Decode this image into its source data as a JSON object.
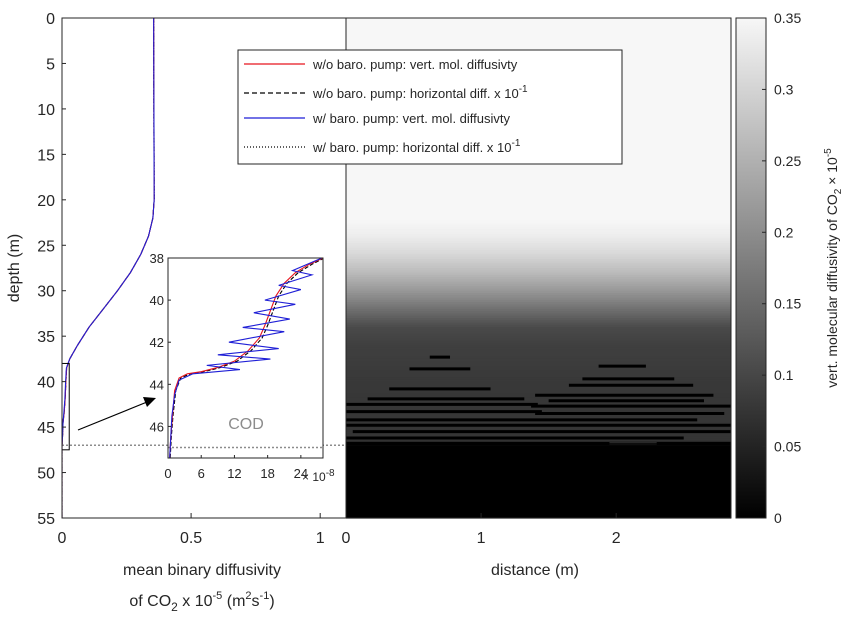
{
  "chart_data": [
    {
      "type": "line",
      "panel": "profile",
      "xlabel_line1": "mean binary diffusivity",
      "xlabel_line2": "of CO",
      "xlabel_sub": "2",
      "xlabel_mid": " x 10",
      "xlabel_exp": "-5",
      "xlabel_unit_a": " (m",
      "xlabel_unit_b": "2",
      "xlabel_unit_c": "s",
      "xlabel_unit_d": "-1",
      "xlabel_unit_e": ")",
      "ylabel": "depth (m)",
      "xlim": [
        0,
        1.1
      ],
      "ylim": [
        55,
        0
      ],
      "x_ticks": [
        0,
        0.5,
        1
      ],
      "x_tick_labels": [
        "0",
        "0.5",
        "1"
      ],
      "y_ticks": [
        0,
        5,
        10,
        15,
        20,
        25,
        30,
        35,
        40,
        45,
        50,
        55
      ],
      "y_tick_labels": [
        "0",
        "5",
        "10",
        "15",
        "20",
        "25",
        "30",
        "35",
        "40",
        "45",
        "50",
        "55"
      ],
      "grid": false,
      "series": [
        {
          "name": "w/o baro. pump: vert. mol. diffusivty",
          "color": "#e8141e",
          "dash": "solid",
          "points": [
            [
              0.355,
              0
            ],
            [
              0.356,
              10
            ],
            [
              0.357,
              20
            ],
            [
              0.352,
              22
            ],
            [
              0.335,
              24
            ],
            [
              0.305,
              26
            ],
            [
              0.265,
              28
            ],
            [
              0.215,
              30
            ],
            [
              0.16,
              32
            ],
            [
              0.105,
              34
            ],
            [
              0.06,
              36
            ],
            [
              0.03,
              37.5
            ],
            [
              0.018,
              38.5
            ],
            [
              0.015,
              40
            ],
            [
              0.012,
              42
            ],
            [
              0.008,
              43.5
            ],
            [
              0.004,
              44.5
            ],
            [
              0.002,
              46
            ],
            [
              0.0,
              47
            ],
            [
              0.0,
              55
            ]
          ]
        },
        {
          "name": "w/o baro. pump: horizontal diff. x 10",
          "name_exp": "-1",
          "color": "#000000",
          "dash": "dashed",
          "points": [
            [
              0.355,
              0
            ],
            [
              0.356,
              10
            ],
            [
              0.357,
              20
            ],
            [
              0.352,
              22
            ],
            [
              0.335,
              24
            ],
            [
              0.305,
              26
            ],
            [
              0.265,
              28
            ],
            [
              0.215,
              30
            ],
            [
              0.16,
              32
            ],
            [
              0.105,
              34
            ],
            [
              0.06,
              36
            ],
            [
              0.03,
              37.5
            ],
            [
              0.018,
              38.5
            ],
            [
              0.015,
              40
            ],
            [
              0.012,
              42
            ],
            [
              0.008,
              43.5
            ],
            [
              0.004,
              44.5
            ],
            [
              0.002,
              46
            ],
            [
              0.0,
              47
            ],
            [
              0.0,
              55
            ]
          ]
        },
        {
          "name": "w/ baro. pump: vert. mol. diffusivty",
          "color": "#1f1fd6",
          "dash": "solid",
          "points": [
            [
              0.355,
              0
            ],
            [
              0.356,
              10
            ],
            [
              0.357,
              20
            ],
            [
              0.352,
              22
            ],
            [
              0.335,
              24
            ],
            [
              0.305,
              26
            ],
            [
              0.265,
              28
            ],
            [
              0.215,
              30
            ],
            [
              0.16,
              32
            ],
            [
              0.105,
              34
            ],
            [
              0.06,
              36
            ],
            [
              0.03,
              37.5
            ],
            [
              0.017,
              38.5
            ],
            [
              0.014,
              40
            ],
            [
              0.011,
              42
            ],
            [
              0.007,
              43.5
            ],
            [
              0.004,
              44.5
            ],
            [
              0.002,
              46
            ],
            [
              0.0,
              47
            ],
            [
              0.0,
              55
            ]
          ]
        },
        {
          "name": "w/ baro. pump: horizontal diff. x 10",
          "name_exp": "-1",
          "color": "#000000",
          "dash": "dotted",
          "points": [
            [
              0.355,
              0
            ],
            [
              0.356,
              10
            ],
            [
              0.357,
              20
            ],
            [
              0.352,
              22
            ],
            [
              0.335,
              24
            ],
            [
              0.305,
              26
            ],
            [
              0.265,
              28
            ],
            [
              0.215,
              30
            ],
            [
              0.16,
              32
            ],
            [
              0.105,
              34
            ],
            [
              0.06,
              36
            ],
            [
              0.03,
              37.5
            ],
            [
              0.018,
              38.5
            ],
            [
              0.015,
              40
            ],
            [
              0.012,
              42
            ],
            [
              0.008,
              43.5
            ],
            [
              0.004,
              44.5
            ],
            [
              0.002,
              46
            ],
            [
              0.0,
              47
            ],
            [
              0.0,
              55
            ]
          ]
        }
      ],
      "cod_depth": 47,
      "cod_color": "#8c8c8c",
      "zoom_box": {
        "x": [
          0,
          0.028
        ],
        "y": [
          38,
          47.5
        ]
      }
    },
    {
      "type": "line",
      "panel": "inset",
      "label": "COD",
      "xlim": [
        0,
        28
      ],
      "ylim": [
        47.5,
        38
      ],
      "x_ticks": [
        0,
        6,
        12,
        18,
        24
      ],
      "x_tick_labels": [
        "0",
        "6",
        "12",
        "18",
        "24"
      ],
      "x_multiplier": "× 10",
      "x_multiplier_exp": "-8",
      "y_ticks": [
        38,
        40,
        42,
        44,
        46
      ],
      "y_tick_labels": [
        "38",
        "40",
        "42",
        "44",
        "46"
      ],
      "series": [
        {
          "name": "w/o baro. pump: vert. mol. diffusivty",
          "color": "#e8141e",
          "points": [
            [
              28,
              38
            ],
            [
              25.5,
              38.3
            ],
            [
              23,
              38.7
            ],
            [
              21,
              39.2
            ],
            [
              19.5,
              39.8
            ],
            [
              18.5,
              40.5
            ],
            [
              17.5,
              41.2
            ],
            [
              16.5,
              41.8
            ],
            [
              14.5,
              42.4
            ],
            [
              12,
              42.9
            ],
            [
              9,
              43.2
            ],
            [
              6,
              43.4
            ],
            [
              3.5,
              43.5
            ],
            [
              2,
              43.7
            ],
            [
              1.2,
              44.3
            ],
            [
              0.8,
              45.5
            ],
            [
              0.5,
              46.5
            ],
            [
              0.3,
              47.5
            ]
          ]
        },
        {
          "name": "w/o baro. pump: horizontal diff. x 10",
          "name_exp": "-1",
          "color": "#000000",
          "dash": "dashed",
          "points": [
            [
              28.2,
              38
            ],
            [
              26,
              38.3
            ],
            [
              23.5,
              38.7
            ],
            [
              21.5,
              39.2
            ],
            [
              20,
              39.8
            ],
            [
              19,
              40.5
            ],
            [
              18,
              41.2
            ],
            [
              17,
              41.8
            ],
            [
              15,
              42.4
            ],
            [
              12.5,
              42.9
            ],
            [
              9.5,
              43.2
            ],
            [
              6.5,
              43.4
            ],
            [
              4,
              43.5
            ],
            [
              2.3,
              43.7
            ],
            [
              1.4,
              44.3
            ],
            [
              0.9,
              45.5
            ],
            [
              0.6,
              46.5
            ],
            [
              0.4,
              47.5
            ]
          ]
        },
        {
          "name": "w/ baro. pump: vert. mol. diffusivty",
          "color": "#1f1fd6",
          "points": [
            [
              27.8,
              38
            ],
            [
              22.5,
              38.6
            ],
            [
              26,
              38.8
            ],
            [
              20,
              39.3
            ],
            [
              24,
              39.5
            ],
            [
              17.5,
              40.0
            ],
            [
              23,
              40.2
            ],
            [
              15.5,
              40.6
            ],
            [
              22,
              40.9
            ],
            [
              13.5,
              41.3
            ],
            [
              21,
              41.5
            ],
            [
              11,
              42.0
            ],
            [
              20,
              42.3
            ],
            [
              9,
              42.6
            ],
            [
              18.5,
              42.8
            ],
            [
              7,
              43.1
            ],
            [
              13,
              43.3
            ],
            [
              4.5,
              43.5
            ],
            [
              2,
              43.8
            ],
            [
              1.2,
              44.5
            ],
            [
              0.7,
              45.5
            ],
            [
              0.5,
              46.5
            ],
            [
              0.3,
              47.5
            ]
          ]
        }
      ]
    },
    {
      "type": "heatmap",
      "panel": "field",
      "xlabel": "distance (m)",
      "xlim": [
        0,
        2.85
      ],
      "ylim": [
        55,
        0
      ],
      "x_ticks": [
        0,
        1,
        2
      ],
      "x_tick_labels": [
        "0",
        "1",
        "2"
      ],
      "colorbar": {
        "label": "vert. molecular diffusivity of CO",
        "label_sub": "2",
        "label_mid": " × 10",
        "label_exp": "-5",
        "min": 0,
        "max": 0.35,
        "ticks": [
          0,
          0.05,
          0.1,
          0.15,
          0.2,
          0.25,
          0.3,
          0.35
        ],
        "tick_labels": [
          "0",
          "0.05",
          "0.1",
          "0.15",
          "0.2",
          "0.25",
          "0.3",
          "0.35"
        ],
        "colors": [
          "#000000",
          "#f7f7f7"
        ]
      },
      "field_profile": [
        [
          0,
          0.356
        ],
        [
          20,
          0.356
        ],
        [
          22,
          0.352
        ],
        [
          24,
          0.335
        ],
        [
          26,
          0.305
        ],
        [
          28,
          0.265
        ],
        [
          30,
          0.215
        ],
        [
          32,
          0.16
        ],
        [
          34,
          0.105
        ],
        [
          36,
          0.09
        ],
        [
          38,
          0.085
        ],
        [
          40,
          0.08
        ],
        [
          42,
          0.078
        ],
        [
          44,
          0.076
        ],
        [
          46.5,
          0.075
        ],
        [
          47,
          0.0
        ],
        [
          55,
          0.0
        ]
      ],
      "lenses": [
        [
          0.62,
          0.77,
          37.3
        ],
        [
          0.47,
          0.92,
          38.6
        ],
        [
          1.87,
          2.22,
          38.3
        ],
        [
          1.75,
          2.43,
          39.7
        ],
        [
          0.32,
          1.07,
          40.8
        ],
        [
          1.65,
          2.57,
          40.4
        ],
        [
          0.16,
          1.32,
          41.9
        ],
        [
          1.5,
          2.65,
          42.1
        ],
        [
          1.4,
          2.72,
          41.5
        ],
        [
          0.0,
          1.42,
          42.5
        ],
        [
          1.37,
          2.85,
          42.7
        ],
        [
          0.0,
          1.45,
          43.3
        ],
        [
          1.4,
          2.8,
          43.5
        ],
        [
          0.0,
          2.6,
          44.2
        ],
        [
          0.0,
          2.85,
          44.8
        ],
        [
          0.05,
          2.85,
          45.5
        ],
        [
          0.0,
          2.5,
          46.2
        ],
        [
          0.0,
          1.95,
          46.8
        ],
        [
          2.3,
          2.85,
          46.8
        ]
      ]
    }
  ],
  "legend": {
    "placement": "top-right of left panel",
    "items": [
      {
        "text": "w/o baro. pump: vert. mol. diffusivty",
        "exp": ""
      },
      {
        "text": "w/o baro. pump: horizontal diff. x 10",
        "exp": "-1"
      },
      {
        "text": "w/ baro. pump: vert. mol. diffusivty",
        "exp": ""
      },
      {
        "text": "w/ baro. pump: horizontal diff. x 10",
        "exp": "-1"
      }
    ]
  }
}
